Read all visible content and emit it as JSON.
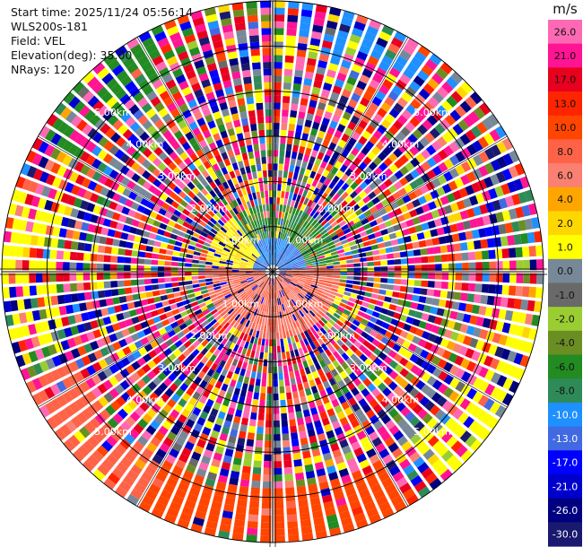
{
  "info": {
    "start_time": "Start time: 2025/11/24 05:56:14",
    "instrument": "WLS200s-181",
    "field": "Field: VEL",
    "elevation": "Elevation(deg): 35.00",
    "nrays": "NRays: 120"
  },
  "chart_data": {
    "type": "heatmap",
    "projection": "polar-ppi",
    "field": "VEL",
    "elevation_deg": 35.0,
    "n_rays": 120,
    "range_max_km": 6.0,
    "range_rings_km": [
      1,
      2,
      3,
      4,
      5
    ],
    "range_ring_labels": [
      "1.00km",
      "2.00km",
      "3.00km",
      "4.00km",
      "5.00km"
    ],
    "colorbar": {
      "unit": "m/s",
      "ticks": [
        "26.0",
        "21.0",
        "17.0",
        "13.0",
        "10.0",
        "8.0",
        "6.0",
        "4.0",
        "2.0",
        "1.0",
        "0.0",
        "-1.0",
        "-2.0",
        "-4.0",
        "-6.0",
        "-8.0",
        "-10.0",
        "-13.0",
        "-17.0",
        "-21.0",
        "-26.0",
        "-30.0"
      ],
      "colors": [
        "#ff69b4",
        "#ff1493",
        "#e8001e",
        "#ff2400",
        "#ff4500",
        "#ff6347",
        "#fa8072",
        "#ffa500",
        "#ffd700",
        "#ffff00",
        "#778899",
        "#696969",
        "#9acd32",
        "#6b8e23",
        "#228b22",
        "#2e8b57",
        "#1e90ff",
        "#4169e1",
        "#0000ff",
        "#0000cd",
        "#000080",
        "#191970"
      ]
    }
  }
}
